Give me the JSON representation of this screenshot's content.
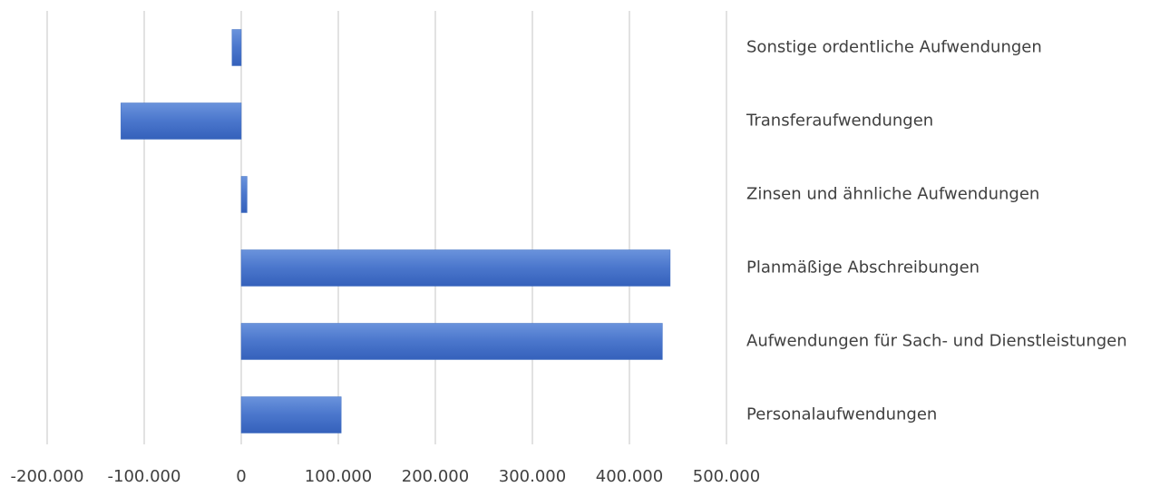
{
  "chart_data": {
    "type": "barh",
    "categories": [
      "Sonstige ordentliche Aufwendungen",
      "Transferaufwendungen",
      "Zinsen und ähnliche Aufwendungen",
      "Planmäßige Abschreibungen",
      "Aufwendungen für Sach- und Dienstleistungen",
      "Personalaufwendungen"
    ],
    "values": [
      -9500,
      -124000,
      6000,
      442000,
      434000,
      103000
    ],
    "color": "#4472c4",
    "xlim": [
      -200000,
      500000
    ],
    "xticks": [
      {
        "value": -200000,
        "label": "-200.000"
      },
      {
        "value": -100000,
        "label": "-100.000"
      },
      0,
      {
        "value": 100000,
        "label": "100.000"
      },
      {
        "value": 200000,
        "label": "200.000"
      },
      {
        "value": 300000,
        "label": "300.000"
      },
      {
        "value": 400000,
        "label": "400.000"
      },
      {
        "value": 500000,
        "label": "500.000"
      }
    ],
    "grid": true
  }
}
